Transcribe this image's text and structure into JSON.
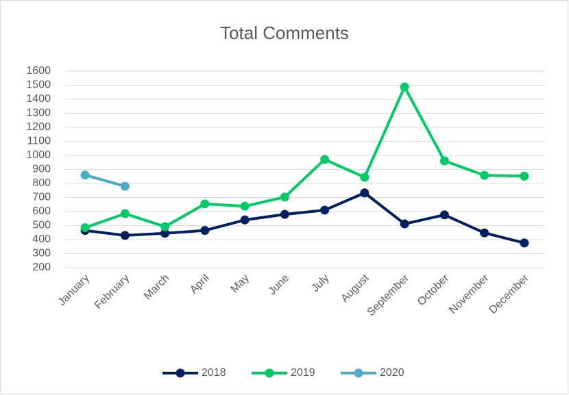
{
  "chart_data": {
    "type": "line",
    "title": "Total Comments",
    "categories": [
      "January",
      "February",
      "March",
      "April",
      "May",
      "June",
      "July",
      "August",
      "September",
      "October",
      "November",
      "December"
    ],
    "series": [
      {
        "name": "2018",
        "color": "#002060",
        "values": [
          465,
          430,
          445,
          465,
          540,
          580,
          610,
          733,
          512,
          576,
          448,
          376
        ]
      },
      {
        "name": "2019",
        "color": "#00cc66",
        "values": [
          485,
          585,
          492,
          654,
          638,
          703,
          971,
          844,
          1488,
          961,
          858,
          852
        ]
      },
      {
        "name": "2020",
        "color": "#4bacc6",
        "values": [
          860,
          780,
          null,
          null,
          null,
          null,
          null,
          null,
          null,
          null,
          null,
          null
        ]
      }
    ],
    "ylim": [
      200,
      1600
    ],
    "yticks": [
      200,
      300,
      400,
      500,
      600,
      700,
      800,
      900,
      1000,
      1100,
      1200,
      1300,
      1400,
      1500,
      1600
    ],
    "grid": true,
    "legend": "bottom"
  }
}
